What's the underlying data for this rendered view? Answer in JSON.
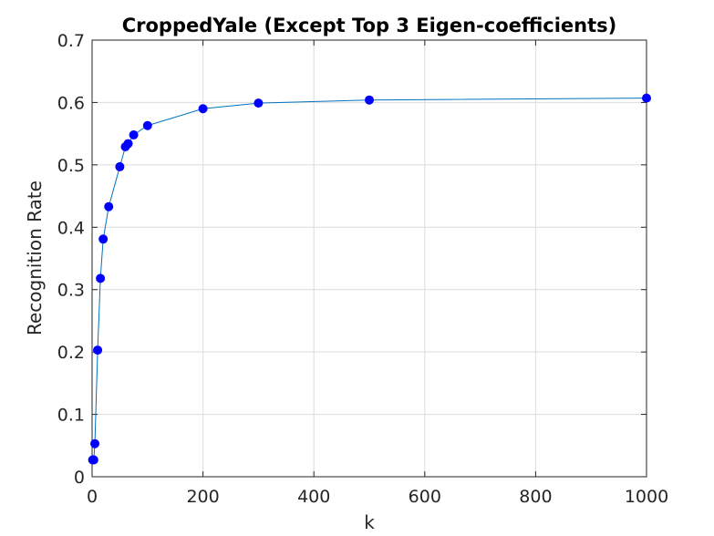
{
  "chart_data": {
    "type": "line",
    "title": "CroppedYale (Except Top 3 Eigen-coefficients)",
    "xlabel": "k",
    "ylabel": "Recognition Rate",
    "xlim": [
      0,
      1000
    ],
    "ylim": [
      0,
      0.7
    ],
    "xticks": [
      0,
      200,
      400,
      600,
      800,
      1000
    ],
    "xtick_labels": [
      "0",
      "200",
      "400",
      "600",
      "800",
      "1000"
    ],
    "yticks": [
      0,
      0.1,
      0.2,
      0.3,
      0.4,
      0.5,
      0.6,
      0.7
    ],
    "ytick_labels": [
      "0",
      "0.1",
      "0.2",
      "0.3",
      "0.4",
      "0.5",
      "0.6",
      "0.7"
    ],
    "grid": true,
    "line_color": "#0072BD",
    "marker_color": "#0000FF",
    "series": [
      {
        "x": [
          1,
          3,
          5,
          10,
          15,
          20,
          30,
          50,
          60,
          65,
          75,
          100,
          200,
          300,
          500,
          1000
        ],
        "y": [
          0.027,
          0.027,
          0.053,
          0.203,
          0.318,
          0.381,
          0.433,
          0.497,
          0.529,
          0.534,
          0.548,
          0.563,
          0.59,
          0.599,
          0.604,
          0.607
        ]
      }
    ]
  }
}
